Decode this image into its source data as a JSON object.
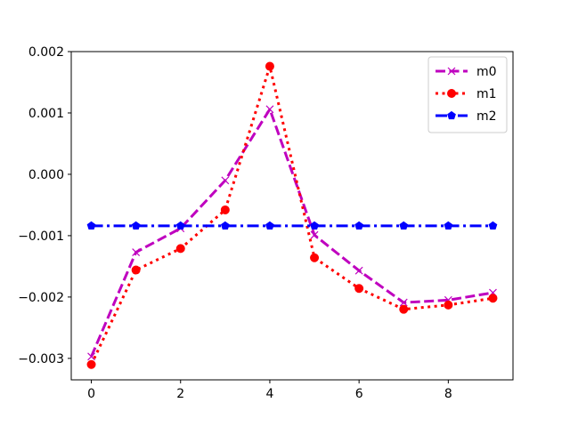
{
  "chart_data": {
    "type": "line",
    "title": "",
    "xlabel": "",
    "ylabel": "",
    "xlim": [
      -0.45,
      9.45
    ],
    "ylim": [
      -0.00335,
      0.002
    ],
    "grid": false,
    "legend_position": "top-right",
    "x_ticks": [
      0,
      2,
      4,
      6,
      8
    ],
    "x_tick_labels": [
      "0",
      "2",
      "4",
      "6",
      "8"
    ],
    "y_ticks": [
      -0.003,
      -0.002,
      -0.001,
      0.0,
      0.001,
      0.002
    ],
    "y_tick_labels": [
      "−0.003",
      "−0.002",
      "−0.001",
      "0.000",
      "0.001",
      "0.002"
    ],
    "x": [
      0,
      1,
      2,
      3,
      4,
      5,
      6,
      7,
      8,
      9
    ],
    "series": [
      {
        "name": "m0",
        "color": "#bf00bf",
        "line_style": "dashed",
        "marker": "x",
        "values": [
          -0.00297,
          -0.00127,
          -0.00088,
          -0.0001,
          0.00106,
          -0.00099,
          -0.00157,
          -0.00209,
          -0.00205,
          -0.00193
        ]
      },
      {
        "name": "m1",
        "color": "#ff0000",
        "line_style": "dotted",
        "marker": "circle",
        "values": [
          -0.0031,
          -0.00156,
          -0.00121,
          -0.00058,
          0.00176,
          -0.00136,
          -0.00186,
          -0.0022,
          -0.00213,
          -0.00202
        ]
      },
      {
        "name": "m2",
        "color": "#0000ff",
        "line_style": "dashdot",
        "marker": "pentagon",
        "values": [
          -0.00084,
          -0.00084,
          -0.00084,
          -0.00084,
          -0.00084,
          -0.00084,
          -0.00084,
          -0.00084,
          -0.00084,
          -0.00084
        ]
      }
    ]
  }
}
